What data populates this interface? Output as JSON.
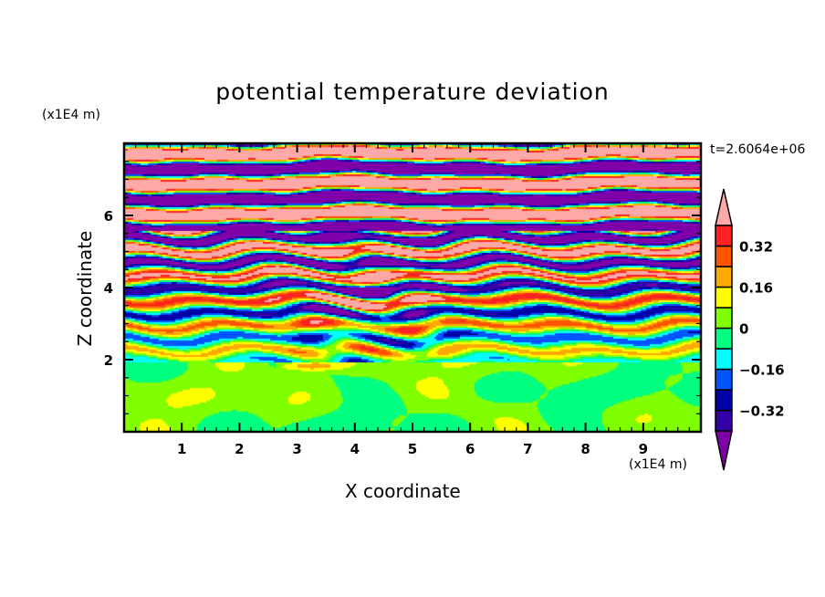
{
  "chart_data": {
    "type": "heatmap",
    "subtype": "filled-contour",
    "title": "potential temperature deviation",
    "xlabel": "X coordinate",
    "ylabel": "Z coordinate",
    "x_unit": "(x1E4 m)",
    "y_unit": "(x1E4 m)",
    "annotation": "t=2.6064e+06",
    "xlim": [
      0,
      10
    ],
    "ylim": [
      0,
      8
    ],
    "x_ticks": [
      1,
      2,
      3,
      4,
      5,
      6,
      7,
      8,
      9
    ],
    "x_tick_labels": [
      "1",
      "2",
      "3",
      "4",
      "5",
      "6",
      "7",
      "8",
      "9"
    ],
    "y_ticks": [
      2,
      4,
      6
    ],
    "y_tick_labels": [
      "2",
      "4",
      "6"
    ],
    "x_minor_step": 0.2,
    "y_minor_step": 0.5,
    "colorbar": {
      "levels": [
        -0.4,
        -0.32,
        -0.24,
        -0.16,
        -0.08,
        0,
        0.08,
        0.16,
        0.24,
        0.32,
        0.4
      ],
      "labels": [
        {
          "value": 0.32,
          "text": "0.32"
        },
        {
          "value": 0.16,
          "text": "0.16"
        },
        {
          "value": 0,
          "text": "0"
        },
        {
          "value": -0.16,
          "text": "−0.16"
        },
        {
          "value": -0.32,
          "text": "−0.32"
        }
      ],
      "colors_low_to_high": [
        "#7f00a8",
        "#3300a8",
        "#0000a8",
        "#0055ff",
        "#00ffff",
        "#00ff80",
        "#80ff00",
        "#ffff00",
        "#ffaa00",
        "#ff5500",
        "#ff2222",
        "#ffa8a8"
      ],
      "extend": "both"
    },
    "field_description_regions": [
      {
        "z_range": [
          0,
          2
        ],
        "dominant_values": "near 0 (green / yellow-green swirls)"
      },
      {
        "z_range": [
          2,
          5.5
        ],
        "dominant_values": "wavy bands spanning -0.4 to 0.4"
      },
      {
        "z_range": [
          5.5,
          8
        ],
        "dominant_values": "alternating bands beyond +/-0.4 (pink / purple)"
      }
    ]
  }
}
